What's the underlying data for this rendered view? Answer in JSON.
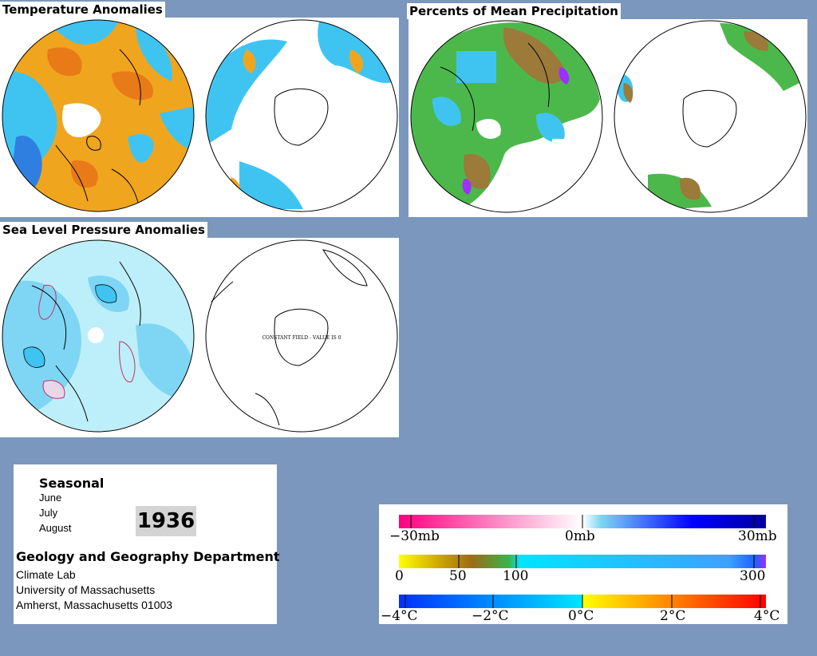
{
  "panels": {
    "temperature_title": "Temperature Anomalies",
    "precipitation_title": "Percents of Mean Precipitation",
    "pressure_title": "Sea Level Pressure Anomalies",
    "constant_field_note": "CONSTANT FIELD - VALUE IS 0"
  },
  "info": {
    "season_label": "Seasonal",
    "months": [
      "June",
      "July",
      "August"
    ],
    "year": "1936",
    "department": "Geology and Geography Department",
    "lab": "Climate Lab",
    "university": "University of Massachusetts",
    "address": "Amherst, Massachusetts 01003"
  },
  "legends": {
    "pressure": {
      "ticks": [
        "−30mb",
        "0mb",
        "30mb"
      ],
      "colors": [
        "#ff0080",
        "#ffffff",
        "#0000a0"
      ]
    },
    "precipitation": {
      "ticks": [
        "0",
        "50",
        "100",
        "300"
      ],
      "colors": [
        "#ffff00",
        "#9b6b1a",
        "#39b54a",
        "#00e5ff",
        "#9b30ff"
      ]
    },
    "temperature": {
      "ticks": [
        "−4°C",
        "−2°C",
        "0°C",
        "2°C",
        "4°C"
      ],
      "colors": [
        "#0030ff",
        "#00e5ff",
        "#ffff00",
        "#ff0000"
      ]
    }
  },
  "colors": {
    "background": "#7b97bd",
    "ocean_blue": "#3fc4f2",
    "warm_orange": "#f0a51e",
    "brown": "#9b7a3a",
    "green": "#4cb84c",
    "light_blue": "#bdeffa"
  }
}
